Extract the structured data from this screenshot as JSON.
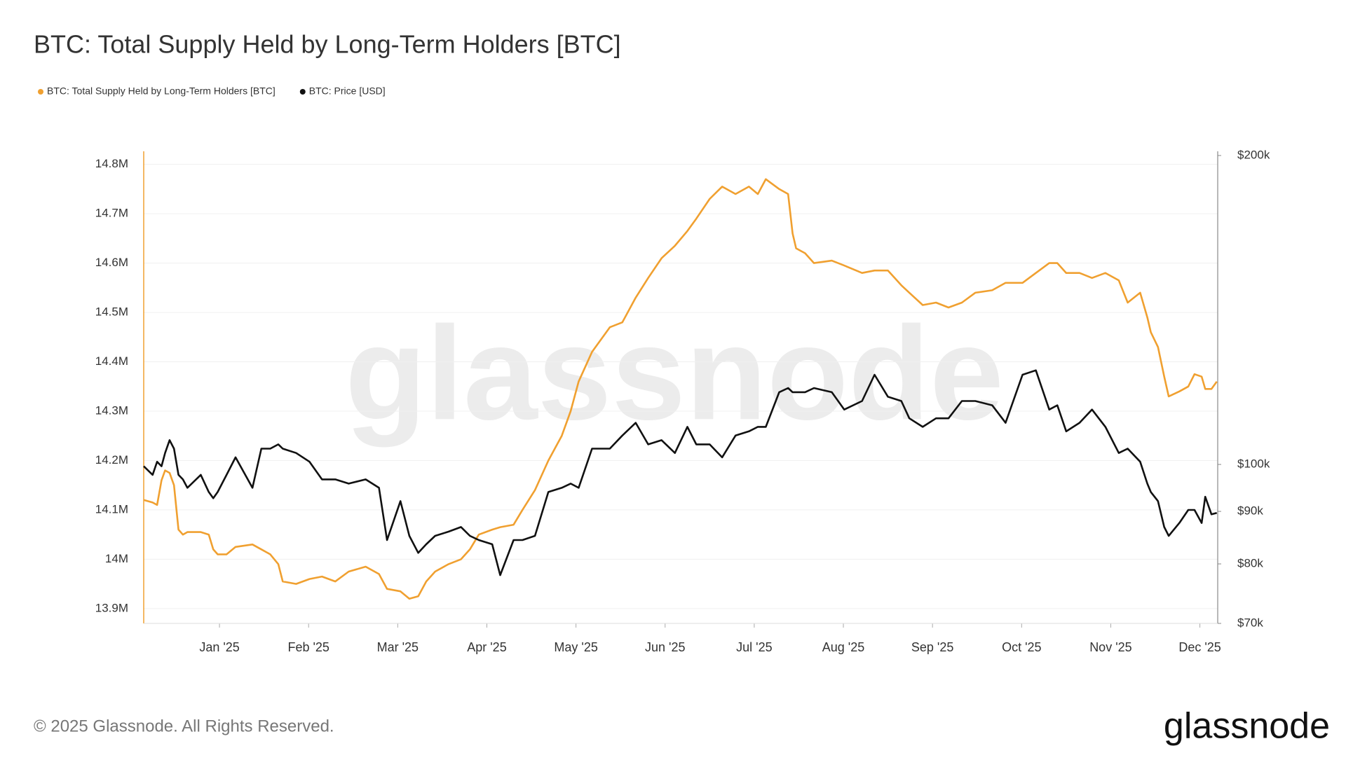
{
  "chart_data": {
    "type": "line",
    "title": "BTC: Total Supply Held by Long-Term Holders [BTC]",
    "watermark": "glassnode",
    "copyright": "© 2025 Glassnode. All Rights Reserved.",
    "logo": "glassnode",
    "x": [
      -0.85,
      -0.75,
      -0.7,
      -0.65,
      -0.61,
      -0.56,
      -0.51,
      -0.46,
      -0.41,
      -0.36,
      -0.21,
      -0.12,
      -0.07,
      -0.02,
      0.08,
      0.18,
      0.37,
      0.47,
      0.57,
      0.66,
      0.71,
      0.86,
      1.01,
      1.15,
      1.3,
      1.45,
      1.64,
      1.79,
      1.88,
      2.03,
      2.13,
      2.23,
      2.32,
      2.42,
      2.57,
      2.71,
      2.81,
      2.91,
      3.06,
      3.15,
      3.3,
      3.4,
      3.54,
      3.69,
      3.84,
      3.94,
      4.03,
      4.18,
      4.38,
      4.52,
      4.67,
      4.81,
      4.96,
      5.11,
      5.25,
      5.35,
      5.5,
      5.64,
      5.79,
      5.94,
      6.04,
      6.13,
      6.28,
      6.38,
      6.43,
      6.47,
      6.57,
      6.67,
      6.87,
      7.01,
      7.21,
      7.35,
      7.5,
      7.65,
      7.74,
      7.89,
      8.04,
      8.18,
      8.33,
      8.48,
      8.67,
      8.82,
      9.01,
      9.16,
      9.31,
      9.4,
      9.5,
      9.65,
      9.79,
      9.94,
      10.09,
      10.19,
      10.33,
      10.41,
      10.45,
      10.53,
      10.6,
      10.65,
      10.77,
      10.87,
      10.94,
      11.02,
      11.06,
      11.13,
      11.19
    ],
    "xlim": [
      -0.85,
      11.2
    ],
    "xticks": [
      {
        "value": 0,
        "label": "Jan '25"
      },
      {
        "value": 1,
        "label": "Feb '25"
      },
      {
        "value": 2,
        "label": "Mar '25"
      },
      {
        "value": 3,
        "label": "Apr '25"
      },
      {
        "value": 4,
        "label": "May '25"
      },
      {
        "value": 5,
        "label": "Jun '25"
      },
      {
        "value": 6,
        "label": "Jul '25"
      },
      {
        "value": 7,
        "label": "Aug '25"
      },
      {
        "value": 8,
        "label": "Sep '25"
      },
      {
        "value": 9,
        "label": "Oct '25"
      },
      {
        "value": 10,
        "label": "Nov '25"
      },
      {
        "value": 11,
        "label": "Dec '25"
      }
    ],
    "ylim": [
      13870000,
      14818000
    ],
    "yticks": [
      {
        "value": 13900000,
        "label": "13.9M"
      },
      {
        "value": 14000000,
        "label": "14M"
      },
      {
        "value": 14100000,
        "label": "14.1M"
      },
      {
        "value": 14200000,
        "label": "14.2M"
      },
      {
        "value": 14300000,
        "label": "14.3M"
      },
      {
        "value": 14400000,
        "label": "14.4M"
      },
      {
        "value": 14500000,
        "label": "14.5M"
      },
      {
        "value": 14600000,
        "label": "14.6M"
      },
      {
        "value": 14700000,
        "label": "14.7M"
      },
      {
        "value": 14800000,
        "label": "14.8M"
      }
    ],
    "y2lim": [
      70000,
      200000
    ],
    "y2log": true,
    "y2ticks": [
      {
        "value": 70000,
        "label": "$70k"
      },
      {
        "value": 80000,
        "label": "$80k"
      },
      {
        "value": 90000,
        "label": "$90k"
      },
      {
        "value": 100000,
        "label": "$100k"
      },
      {
        "value": 200000,
        "label": "$200k"
      }
    ],
    "grid": true,
    "series": [
      {
        "name": "BTC: Total Supply Held by Long-Term Holders [BTC]",
        "color": "#f0a030",
        "axis": "y",
        "values": [
          14120000,
          14115000,
          14110000,
          14160000,
          14180000,
          14175000,
          14150000,
          14060000,
          14050000,
          14055000,
          14055000,
          14050000,
          14020000,
          14010000,
          14010000,
          14025000,
          14030000,
          14020000,
          14010000,
          13990000,
          13955000,
          13950000,
          13960000,
          13965000,
          13955000,
          13975000,
          13985000,
          13970000,
          13940000,
          13935000,
          13920000,
          13925000,
          13955000,
          13975000,
          13990000,
          14000000,
          14020000,
          14050000,
          14060000,
          14065000,
          14070000,
          14100000,
          14140000,
          14200000,
          14250000,
          14300000,
          14360000,
          14420000,
          14470000,
          14480000,
          14530000,
          14570000,
          14610000,
          14635000,
          14665000,
          14690000,
          14730000,
          14755000,
          14740000,
          14755000,
          14740000,
          14770000,
          14750000,
          14740000,
          14660000,
          14630000,
          14620000,
          14600000,
          14605000,
          14595000,
          14580000,
          14585000,
          14585000,
          14555000,
          14540000,
          14515000,
          14520000,
          14510000,
          14520000,
          14540000,
          14545000,
          14560000,
          14560000,
          14580000,
          14600000,
          14600000,
          14580000,
          14580000,
          14570000,
          14580000,
          14565000,
          14520000,
          14540000,
          14490000,
          14460000,
          14430000,
          14370000,
          14330000,
          14340000,
          14350000,
          14375000,
          14370000,
          14345000,
          14345000,
          14360000
        ]
      },
      {
        "name": "BTC: Price [USD]",
        "color": "#111111",
        "axis": "y2",
        "values": [
          99600,
          97700,
          100600,
          99600,
          102600,
          105600,
          103600,
          97700,
          96700,
          94900,
          97700,
          94000,
          92700,
          94000,
          97700,
          101600,
          94900,
          103600,
          103600,
          104600,
          103600,
          102600,
          100600,
          96700,
          96700,
          95800,
          96700,
          94900,
          84400,
          92100,
          85200,
          82000,
          83600,
          85200,
          86000,
          86900,
          85200,
          84400,
          83600,
          78000,
          84400,
          84400,
          85200,
          94000,
          94900,
          95800,
          94900,
          103600,
          103600,
          106700,
          109800,
          104600,
          105600,
          102600,
          108800,
          104600,
          104600,
          101600,
          106700,
          107700,
          108800,
          108800,
          117600,
          118700,
          117600,
          117600,
          117600,
          118700,
          117600,
          113100,
          115300,
          122300,
          116400,
          115300,
          110900,
          108800,
          110900,
          110900,
          115300,
          115300,
          114200,
          109800,
          122300,
          123500,
          113100,
          114200,
          107700,
          109800,
          113100,
          108800,
          102600,
          103600,
          100600,
          95800,
          94000,
          92100,
          86900,
          85200,
          87700,
          90300,
          90300,
          87700,
          93000,
          89400,
          89700
        ]
      }
    ]
  }
}
